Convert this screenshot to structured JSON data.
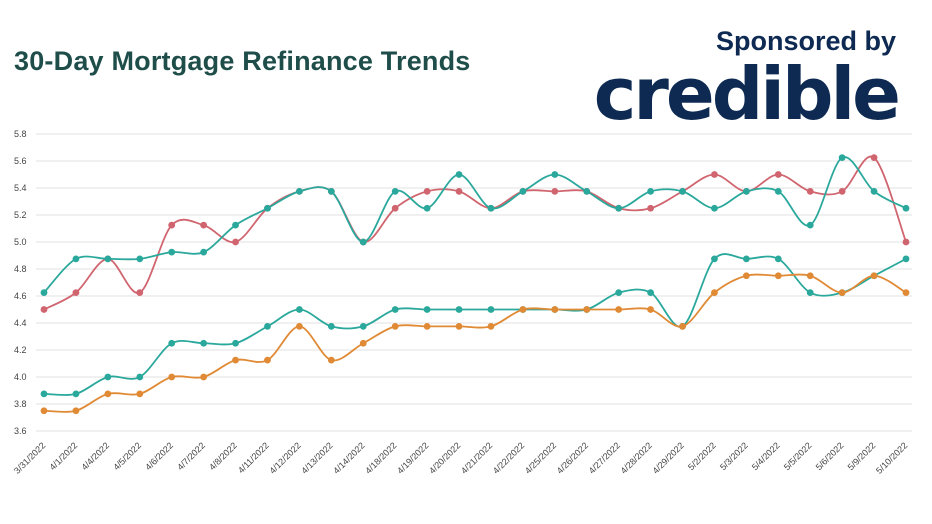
{
  "header": {
    "title": "30-Day Mortgage Refinance Trends",
    "sponsor_text": "Sponsored by",
    "brand_logo_text": "credible"
  },
  "chart_data": {
    "type": "line",
    "title": "30-Day Mortgage Refinance Trends",
    "xlabel": "",
    "ylabel": "",
    "ylim": [
      3.6,
      5.8
    ],
    "yticks": [
      "3.6",
      "3.8",
      "4.0",
      "4.2",
      "4.4",
      "4.6",
      "4.8",
      "5.0",
      "5.2",
      "5.4",
      "5.6",
      "5.8"
    ],
    "grid": true,
    "legend": "none",
    "categories": [
      "3/31/2022",
      "4/1/2022",
      "4/4/2022",
      "4/5/2022",
      "4/6/2022",
      "4/7/2022",
      "4/8/2022",
      "4/11/2022",
      "4/12/2022",
      "4/13/2022",
      "4/14/2022",
      "4/18/2022",
      "4/19/2022",
      "4/20/2022",
      "4/21/2022",
      "4/22/2022",
      "4/25/2022",
      "4/26/2022",
      "4/27/2022",
      "4/28/2022",
      "4/29/2022",
      "5/2/2022",
      "5/3/2022",
      "5/4/2022",
      "5/5/2022",
      "5/6/2022",
      "5/9/2022",
      "5/10/2022"
    ],
    "series": [
      {
        "color": "#d0656f",
        "values": [
          4.5,
          4.625,
          4.875,
          4.625,
          5.125,
          5.125,
          5.0,
          5.25,
          5.375,
          5.375,
          5.0,
          5.25,
          5.375,
          5.375,
          5.25,
          5.375,
          5.375,
          5.375,
          5.25,
          5.25,
          5.375,
          5.5,
          5.375,
          5.5,
          5.375,
          5.375,
          5.625,
          5.0
        ]
      },
      {
        "color": "#2aa89c",
        "values": [
          4.625,
          4.875,
          4.875,
          4.875,
          4.925,
          4.925,
          5.125,
          5.25,
          5.375,
          5.375,
          5.0,
          5.375,
          5.25,
          5.5,
          5.25,
          5.375,
          5.5,
          5.375,
          5.25,
          5.375,
          5.375,
          5.25,
          5.375,
          5.375,
          5.125,
          5.625,
          5.375,
          5.25
        ]
      },
      {
        "color": "#2aa89c",
        "values": [
          3.875,
          3.875,
          4.0,
          4.0,
          4.25,
          4.25,
          4.25,
          4.375,
          4.5,
          4.375,
          4.375,
          4.5,
          4.5,
          4.5,
          4.5,
          4.5,
          4.5,
          4.5,
          4.625,
          4.625,
          4.375,
          4.875,
          4.875,
          4.875,
          4.625,
          4.625,
          4.75,
          4.875
        ]
      },
      {
        "color": "#e08a35",
        "values": [
          3.75,
          3.75,
          3.875,
          3.875,
          4.0,
          4.0,
          4.125,
          4.125,
          4.375,
          4.125,
          4.25,
          4.375,
          4.375,
          4.375,
          4.375,
          4.5,
          4.5,
          4.5,
          4.5,
          4.5,
          4.375,
          4.625,
          4.75,
          4.75,
          4.75,
          4.625,
          4.75,
          4.625
        ]
      }
    ]
  }
}
